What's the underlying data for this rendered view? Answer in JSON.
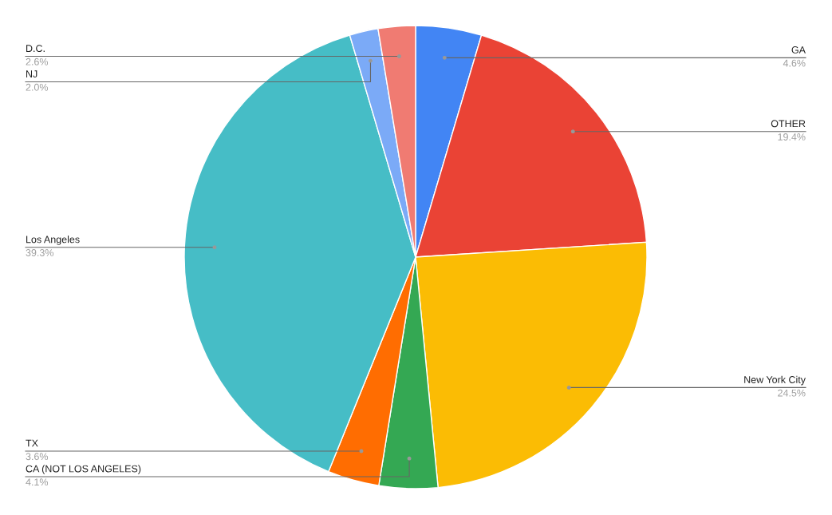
{
  "chart_data": {
    "type": "pie",
    "categories": [
      "GA",
      "OTHER",
      "New York City",
      "CA (NOT LOS ANGELES)",
      "TX",
      "Los Angeles",
      "NJ",
      "D.C."
    ],
    "values": [
      4.6,
      19.4,
      24.5,
      4.1,
      3.6,
      39.3,
      2.0,
      2.6
    ],
    "value_labels": [
      "4.6%",
      "19.4%",
      "24.5%",
      "4.1%",
      "3.6%",
      "39.3%",
      "2.0%",
      "2.6%"
    ],
    "colors": [
      "#4285f4",
      "#ea4335",
      "#fbbc04",
      "#34a853",
      "#ff6d01",
      "#46bdc6",
      "#7baaf7",
      "#f07b72"
    ],
    "legend": false
  }
}
